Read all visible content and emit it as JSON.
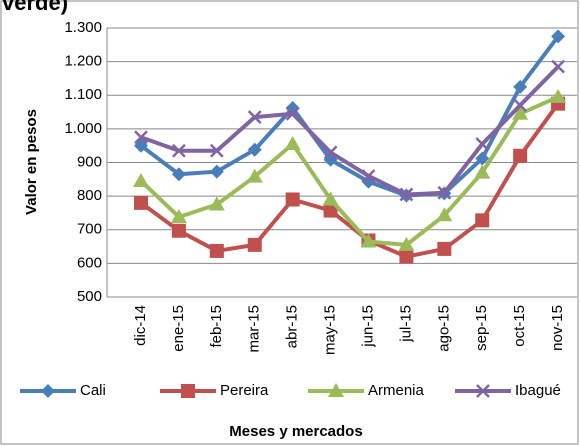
{
  "chart_data": {
    "type": "line",
    "title": "verde)",
    "x_label": "Meses y mercados",
    "y_label": "Valor en pesos",
    "categories": [
      "dic-14",
      "ene-15",
      "feb-15",
      "mar-15",
      "abr-15",
      "may-15",
      "jun-15",
      "jul-15",
      "ago-15",
      "sep-15",
      "oct-15",
      "nov-15"
    ],
    "series": [
      {
        "name": "Cali",
        "color": "#4a7ebb",
        "values": [
          950,
          865,
          873,
          938,
          1062,
          908,
          843,
          802,
          808,
          912,
          1125,
          1275
        ]
      },
      {
        "name": "Pereira",
        "color": "#c0504d",
        "values": [
          780,
          697,
          637,
          655,
          790,
          757,
          668,
          620,
          643,
          728,
          920,
          1075
        ]
      },
      {
        "name": "Armenia",
        "color": "#9bbb59",
        "values": [
          845,
          738,
          775,
          858,
          955,
          790,
          665,
          655,
          743,
          870,
          1045,
          1095
        ]
      },
      {
        "name": "Ibagué",
        "color": "#8064a2",
        "values": [
          975,
          935,
          935,
          1035,
          1045,
          930,
          860,
          805,
          810,
          955,
          1070,
          1185
        ]
      }
    ],
    "ylim": [
      500,
      1300
    ],
    "yticks": [
      500,
      600,
      700,
      800,
      900,
      {
        "value": 1000,
        "label": "1.000"
      },
      {
        "value": 1100,
        "label": "1.100"
      },
      {
        "value": 1200,
        "label": "1.200"
      },
      {
        "value": 1300,
        "label": "1.300"
      }
    ],
    "grid": true
  }
}
